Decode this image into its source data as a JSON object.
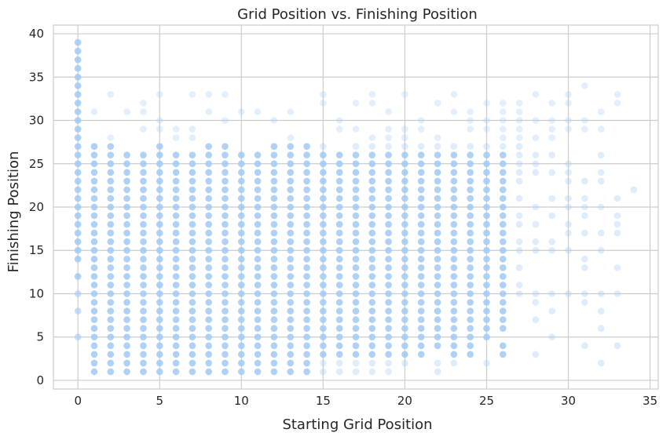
{
  "chart_data": {
    "type": "scatter",
    "title": "Grid Position vs. Finishing Position",
    "xlabel": "Starting Grid Position",
    "ylabel": "Finishing Position",
    "xlim": [
      -1.5,
      35.5
    ],
    "ylim": [
      -1,
      41
    ],
    "xticks": [
      "0",
      "5",
      "10",
      "15",
      "20",
      "25",
      "30",
      "35"
    ],
    "yticks": [
      "0",
      "5",
      "10",
      "15",
      "20",
      "25",
      "30",
      "35",
      "40"
    ],
    "grid": true,
    "colors": {
      "point": "#a1c9f4",
      "grid": "#cccccc",
      "frame": "#cccccc",
      "text": "#262626",
      "background": "#ffffff"
    },
    "points_by_x": {
      "0": [
        5,
        8,
        10,
        12,
        14,
        15,
        16,
        17,
        18,
        19,
        20,
        21,
        22,
        23,
        24,
        25,
        26,
        27,
        28,
        29,
        30,
        31,
        32,
        33,
        34,
        35,
        36,
        37,
        38,
        39
      ],
      "1": [
        1,
        2,
        3,
        4,
        5,
        6,
        7,
        8,
        9,
        10,
        11,
        12,
        13,
        14,
        15,
        16,
        17,
        18,
        19,
        20,
        21,
        22,
        23,
        24,
        25,
        26,
        27,
        31
      ],
      "2": [
        1,
        2,
        3,
        4,
        5,
        6,
        7,
        8,
        9,
        10,
        11,
        12,
        13,
        14,
        15,
        16,
        17,
        18,
        19,
        20,
        21,
        22,
        23,
        24,
        25,
        26,
        27,
        28,
        33
      ],
      "3": [
        1,
        2,
        3,
        4,
        5,
        6,
        7,
        8,
        9,
        10,
        11,
        12,
        13,
        14,
        15,
        16,
        17,
        18,
        19,
        20,
        21,
        22,
        23,
        24,
        25,
        26,
        31
      ],
      "4": [
        1,
        2,
        3,
        4,
        5,
        6,
        7,
        8,
        9,
        10,
        11,
        12,
        13,
        14,
        15,
        16,
        17,
        18,
        19,
        20,
        21,
        22,
        23,
        24,
        25,
        26,
        29,
        31,
        32
      ],
      "5": [
        1,
        2,
        3,
        4,
        5,
        6,
        7,
        8,
        9,
        10,
        11,
        12,
        13,
        14,
        15,
        16,
        17,
        18,
        19,
        20,
        21,
        22,
        23,
        24,
        25,
        26,
        27,
        29,
        30,
        33
      ],
      "6": [
        1,
        2,
        3,
        4,
        5,
        6,
        7,
        8,
        9,
        10,
        11,
        12,
        13,
        14,
        15,
        16,
        17,
        18,
        19,
        20,
        21,
        22,
        23,
        24,
        25,
        26,
        28,
        29
      ],
      "7": [
        1,
        2,
        3,
        4,
        5,
        6,
        7,
        8,
        9,
        10,
        11,
        12,
        13,
        14,
        15,
        16,
        17,
        18,
        19,
        20,
        21,
        22,
        23,
        24,
        25,
        26,
        28,
        29,
        33
      ],
      "8": [
        1,
        2,
        3,
        4,
        5,
        6,
        7,
        8,
        9,
        10,
        11,
        12,
        13,
        14,
        15,
        16,
        17,
        18,
        19,
        20,
        21,
        22,
        23,
        24,
        25,
        26,
        27,
        31,
        33
      ],
      "9": [
        1,
        2,
        3,
        4,
        5,
        6,
        7,
        8,
        9,
        10,
        11,
        12,
        13,
        14,
        15,
        16,
        17,
        18,
        19,
        20,
        21,
        22,
        23,
        24,
        25,
        26,
        27,
        30,
        33
      ],
      "10": [
        1,
        2,
        3,
        4,
        5,
        6,
        7,
        8,
        9,
        10,
        11,
        12,
        13,
        14,
        15,
        16,
        17,
        18,
        19,
        20,
        21,
        22,
        23,
        24,
        25,
        26,
        31
      ],
      "11": [
        1,
        2,
        3,
        4,
        5,
        6,
        7,
        8,
        9,
        10,
        11,
        12,
        13,
        14,
        15,
        16,
        17,
        18,
        19,
        20,
        21,
        22,
        23,
        24,
        25,
        26,
        31
      ],
      "12": [
        1,
        2,
        3,
        4,
        5,
        6,
        7,
        8,
        9,
        10,
        11,
        12,
        13,
        14,
        15,
        16,
        17,
        18,
        19,
        20,
        21,
        22,
        23,
        24,
        25,
        26,
        27,
        30
      ],
      "13": [
        1,
        2,
        3,
        4,
        5,
        6,
        7,
        8,
        9,
        10,
        11,
        12,
        13,
        14,
        15,
        16,
        17,
        18,
        19,
        20,
        21,
        22,
        23,
        24,
        25,
        26,
        27,
        28,
        31
      ],
      "14": [
        1,
        2,
        3,
        4,
        5,
        6,
        7,
        8,
        9,
        10,
        11,
        12,
        13,
        14,
        15,
        16,
        17,
        18,
        19,
        20,
        21,
        22,
        23,
        24,
        25,
        26,
        27
      ],
      "15": [
        1,
        2,
        3,
        4,
        5,
        6,
        7,
        8,
        9,
        10,
        11,
        12,
        13,
        14,
        15,
        16,
        17,
        18,
        19,
        20,
        21,
        22,
        23,
        24,
        25,
        26,
        27,
        32,
        33
      ],
      "16": [
        1,
        2,
        3,
        4,
        5,
        6,
        7,
        8,
        9,
        10,
        11,
        12,
        13,
        14,
        15,
        16,
        17,
        18,
        19,
        20,
        21,
        22,
        23,
        24,
        25,
        26,
        29,
        30
      ],
      "17": [
        1,
        2,
        3,
        4,
        5,
        6,
        7,
        8,
        9,
        10,
        11,
        12,
        13,
        14,
        15,
        16,
        17,
        18,
        19,
        20,
        21,
        22,
        23,
        24,
        25,
        26,
        27,
        29,
        32
      ],
      "18": [
        1,
        2,
        3,
        4,
        5,
        6,
        7,
        8,
        9,
        10,
        11,
        12,
        13,
        14,
        15,
        16,
        17,
        18,
        19,
        20,
        21,
        22,
        23,
        24,
        25,
        26,
        27,
        28,
        32,
        33
      ],
      "19": [
        1,
        2,
        3,
        4,
        5,
        6,
        7,
        8,
        9,
        10,
        11,
        12,
        13,
        14,
        15,
        16,
        17,
        18,
        19,
        20,
        21,
        22,
        23,
        24,
        25,
        26,
        27,
        28,
        29,
        31
      ],
      "20": [
        2,
        3,
        4,
        5,
        6,
        7,
        8,
        9,
        10,
        11,
        12,
        13,
        14,
        15,
        16,
        17,
        18,
        19,
        20,
        21,
        22,
        23,
        24,
        25,
        26,
        27,
        28,
        29,
        33
      ],
      "21": [
        3,
        4,
        5,
        6,
        7,
        8,
        9,
        10,
        11,
        12,
        13,
        14,
        15,
        16,
        17,
        18,
        19,
        20,
        21,
        22,
        23,
        24,
        25,
        26,
        27,
        29,
        30
      ],
      "22": [
        1,
        2,
        4,
        5,
        6,
        7,
        8,
        9,
        10,
        11,
        12,
        13,
        14,
        15,
        16,
        17,
        18,
        19,
        20,
        21,
        22,
        23,
        24,
        25,
        26,
        27,
        28,
        32
      ],
      "23": [
        2,
        3,
        4,
        5,
        6,
        7,
        8,
        9,
        10,
        11,
        12,
        13,
        14,
        15,
        16,
        17,
        18,
        19,
        20,
        21,
        22,
        23,
        24,
        25,
        26,
        27,
        31,
        33
      ],
      "24": [
        3,
        4,
        5,
        6,
        7,
        8,
        9,
        10,
        11,
        12,
        13,
        14,
        15,
        16,
        17,
        18,
        19,
        20,
        21,
        22,
        23,
        24,
        25,
        26,
        27,
        29,
        30,
        31
      ],
      "25": [
        2,
        5,
        6,
        7,
        8,
        9,
        10,
        11,
        12,
        13,
        14,
        15,
        16,
        17,
        18,
        19,
        20,
        21,
        22,
        23,
        24,
        25,
        26,
        27,
        29,
        30,
        32
      ],
      "26": [
        3,
        4,
        6,
        7,
        8,
        9,
        10,
        11,
        12,
        13,
        14,
        15,
        16,
        17,
        18,
        19,
        20,
        21,
        22,
        23,
        24,
        25,
        26,
        27,
        28,
        29,
        30,
        31,
        32
      ],
      "27": [
        10,
        11,
        13,
        15,
        16,
        18,
        19,
        21,
        23,
        24,
        25,
        26,
        27,
        28,
        29,
        30,
        31,
        32
      ],
      "28": [
        3,
        7,
        9,
        10,
        15,
        16,
        18,
        20,
        24,
        25,
        26,
        28,
        30,
        33
      ],
      "29": [
        5,
        8,
        10,
        15,
        16,
        19,
        21,
        24,
        26,
        28,
        29,
        30,
        32
      ],
      "30": [
        10,
        15,
        17,
        18,
        20,
        21,
        23,
        24,
        25,
        29,
        30,
        32,
        33
      ],
      "31": [
        4,
        9,
        10,
        13,
        14,
        17,
        19,
        20,
        21,
        23,
        29,
        30,
        34
      ],
      "32": [
        2,
        6,
        8,
        10,
        15,
        17,
        20,
        23,
        24,
        26,
        29,
        31
      ],
      "33": [
        4,
        10,
        13,
        17,
        18,
        19,
        21,
        32,
        33
      ],
      "34": [
        22
      ]
    }
  }
}
